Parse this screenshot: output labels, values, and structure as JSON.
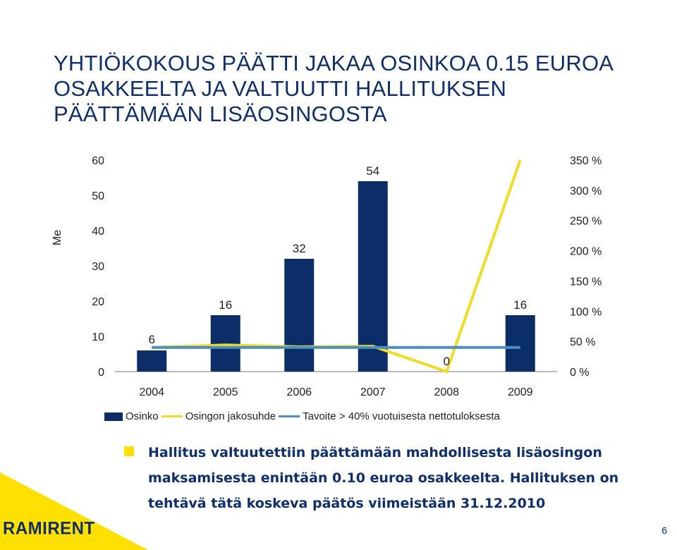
{
  "slide": {
    "title_lines": [
      "YHTIÖKOKOUS PÄÄTTI JAKAA OSINKOA 0.15 EUROA",
      "OSAKKEELTA JA VALTUUTTI HALLITUKSEN",
      "PÄÄTTÄMÄÄN LISÄOSINGOSTA"
    ],
    "bullet_lines": [
      "Hallitus valtuutettiin päättämään mahdollisesta lisäosingon",
      "maksamisesta enintään 0.10 euroa osakkeelta. Hallituksen on",
      "tehtävä tätä koskeva päätös viimeistään 31.12.2010"
    ],
    "logo_text": "RAMIRENT",
    "page_number": "6"
  },
  "colors": {
    "brand_navy": "#0e2f6b",
    "bar": "#0b2e69",
    "payout_line": "#f2dc23",
    "target_line": "#4a8ec2",
    "accent_yellow": "#ffe000"
  },
  "chart_data": {
    "type": "bar",
    "categories": [
      "2004",
      "2005",
      "2006",
      "2007",
      "2008",
      "2009"
    ],
    "ylabel": "Me",
    "ylim": [
      0,
      60
    ],
    "yticks": [
      "0",
      "10",
      "20",
      "30",
      "40",
      "50",
      "60"
    ],
    "y2lim": [
      0,
      350
    ],
    "y2ticks": [
      "0 %",
      "50 %",
      "100 %",
      "150 %",
      "200 %",
      "250 %",
      "300 %",
      "350 %"
    ],
    "grid": false,
    "legend_position": "bottom",
    "series": [
      {
        "name": "Osinko",
        "type": "bar",
        "axis": "left",
        "values": [
          6,
          16,
          32,
          54,
          0,
          16
        ],
        "labels": [
          "6",
          "16",
          "32",
          "54",
          "0",
          "16"
        ]
      },
      {
        "name": "Osingon jakosuhde",
        "type": "line",
        "axis": "right",
        "values": [
          40,
          44,
          41,
          42,
          0,
          350
        ]
      },
      {
        "name": "Tavoite > 40% vuotuisesta nettotuloksesta",
        "type": "line",
        "axis": "right",
        "values": [
          40,
          40,
          40,
          40,
          40,
          40
        ]
      }
    ]
  }
}
